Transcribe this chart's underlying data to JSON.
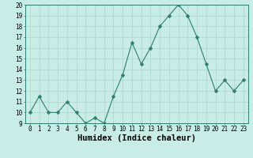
{
  "xlabel": "Humidex (Indice chaleur)",
  "ylabel": "",
  "x_values": [
    0,
    1,
    2,
    3,
    4,
    5,
    6,
    7,
    8,
    9,
    10,
    11,
    12,
    13,
    14,
    15,
    16,
    17,
    18,
    19,
    20,
    21,
    22,
    23
  ],
  "y_values": [
    10,
    11.5,
    10,
    10,
    11,
    10,
    9,
    9.5,
    9,
    11.5,
    13.5,
    16.5,
    14.5,
    16,
    18,
    19,
    20,
    19,
    17,
    14.5,
    12,
    13,
    12,
    13
  ],
  "ylim": [
    9,
    20
  ],
  "xlim": [
    -0.5,
    23.5
  ],
  "line_color": "#2e7d6e",
  "marker": "D",
  "marker_size": 2.5,
  "bg_color": "#c8ece6",
  "grid_color": "#aad4cc",
  "y_ticks": [
    9,
    10,
    11,
    12,
    13,
    14,
    15,
    16,
    17,
    18,
    19,
    20
  ],
  "x_ticks": [
    0,
    1,
    2,
    3,
    4,
    5,
    6,
    7,
    8,
    9,
    10,
    11,
    12,
    13,
    14,
    15,
    16,
    17,
    18,
    19,
    20,
    21,
    22,
    23
  ],
  "tick_fontsize": 5.5,
  "xlabel_fontsize": 7.5
}
